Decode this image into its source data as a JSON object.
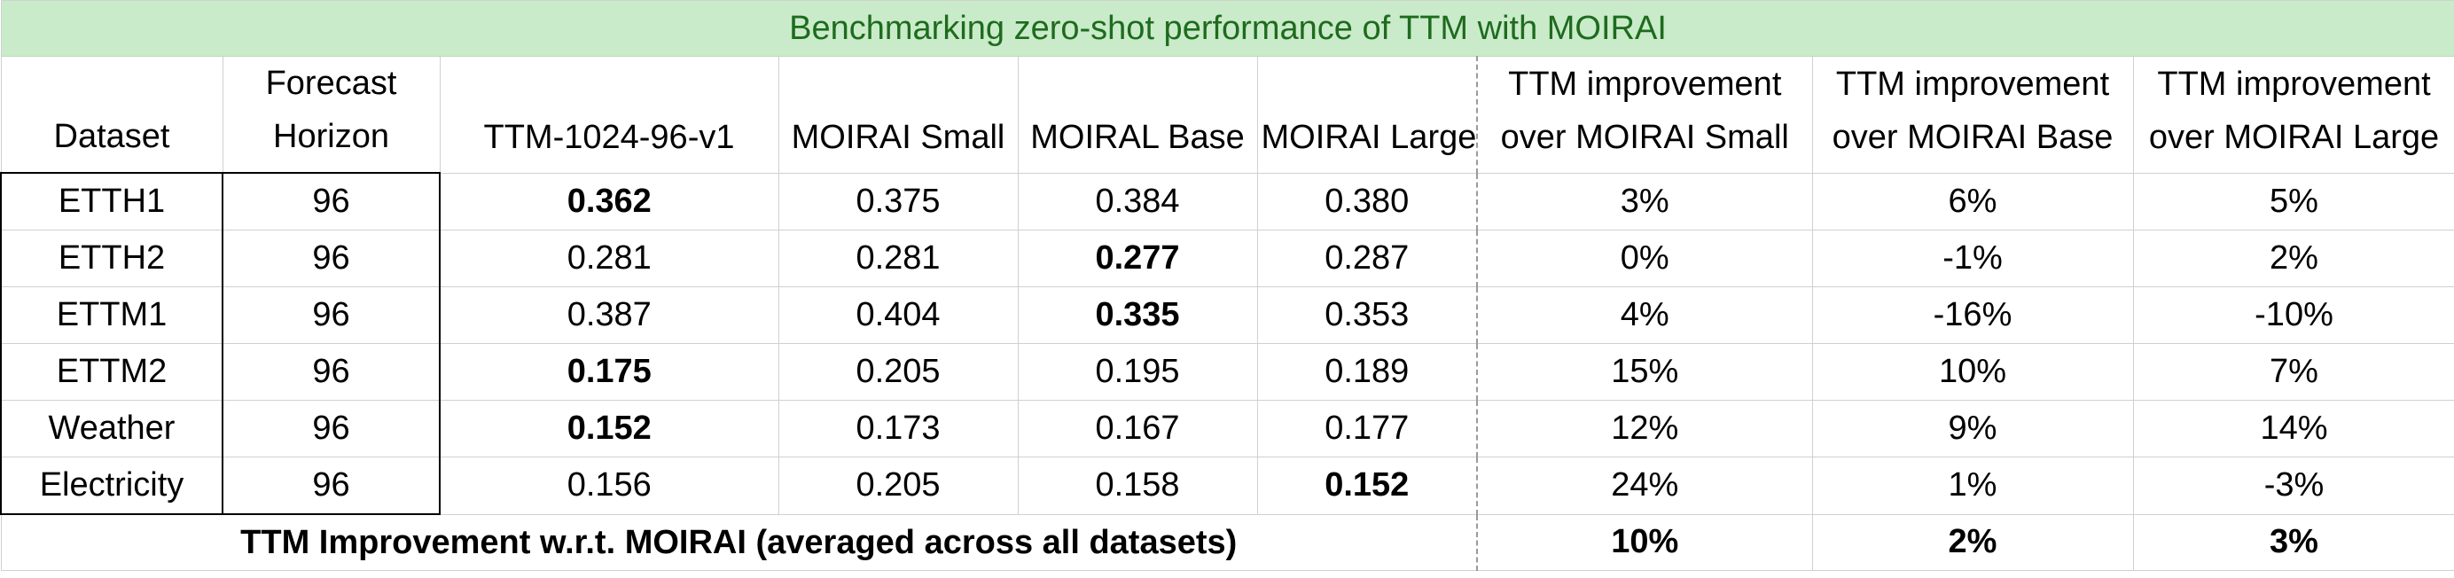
{
  "title": "Benchmarking zero-shot performance of TTM with MOIRAI",
  "headers": {
    "dataset": "Dataset",
    "horizon_line1": "Forecast",
    "horizon_line2": "Horizon",
    "ttm": "TTM-1024-96-v1",
    "moirai_small": "MOIRAI Small",
    "moirai_base": "MOIRAL Base",
    "moirai_large": "MOIRAI Large",
    "imp_small_line1": "TTM improvement",
    "imp_small_line2": "over MOIRAI Small",
    "imp_base_line1": "TTM improvement",
    "imp_base_line2": "over MOIRAI Base",
    "imp_large_line1": "TTM improvement",
    "imp_large_line2": "over MOIRAI Large"
  },
  "rows": [
    {
      "dataset": "ETTH1",
      "horizon": "96",
      "ttm": "0.362",
      "small": "0.375",
      "base": "0.384",
      "large": "0.380",
      "imp_small": "3%",
      "imp_base": "6%",
      "imp_large": "5%",
      "bold": "ttm"
    },
    {
      "dataset": "ETTH2",
      "horizon": "96",
      "ttm": "0.281",
      "small": "0.281",
      "base": "0.277",
      "large": "0.287",
      "imp_small": "0%",
      "imp_base": "-1%",
      "imp_large": "2%",
      "bold": "base"
    },
    {
      "dataset": "ETTM1",
      "horizon": "96",
      "ttm": "0.387",
      "small": "0.404",
      "base": "0.335",
      "large": "0.353",
      "imp_small": "4%",
      "imp_base": "-16%",
      "imp_large": "-10%",
      "bold": "base"
    },
    {
      "dataset": "ETTM2",
      "horizon": "96",
      "ttm": "0.175",
      "small": "0.205",
      "base": "0.195",
      "large": "0.189",
      "imp_small": "15%",
      "imp_base": "10%",
      "imp_large": "7%",
      "bold": "ttm"
    },
    {
      "dataset": "Weather",
      "horizon": "96",
      "ttm": "0.152",
      "small": "0.173",
      "base": "0.167",
      "large": "0.177",
      "imp_small": "12%",
      "imp_base": "9%",
      "imp_large": "14%",
      "bold": "ttm"
    },
    {
      "dataset": "Electricity",
      "horizon": "96",
      "ttm": "0.156",
      "small": "0.205",
      "base": "0.158",
      "large": "0.152",
      "imp_small": "24%",
      "imp_base": "1%",
      "imp_large": "-3%",
      "bold": "large"
    }
  ],
  "footer": {
    "label": "TTM Improvement w.r.t. MOIRAI (averaged across all datasets)",
    "imp_small": "10%",
    "imp_base": "2%",
    "imp_large": "3%"
  },
  "colors": {
    "title_bg": "#c9ebc9",
    "title_text": "#1e6b1e",
    "grid": "#d0d0d0"
  }
}
